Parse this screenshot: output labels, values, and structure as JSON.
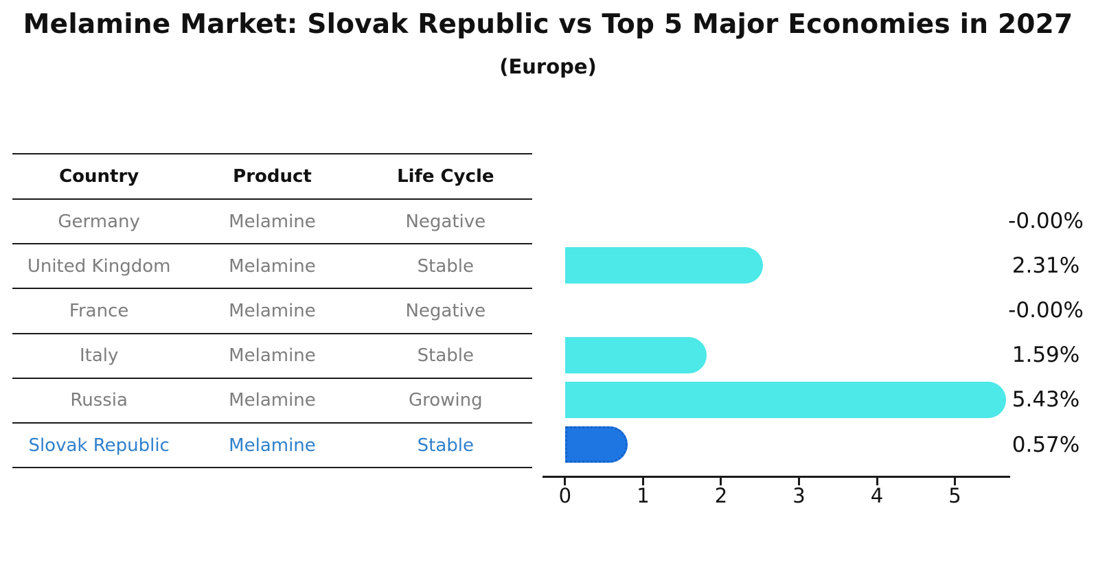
{
  "chart_data": {
    "type": "bar",
    "orientation": "horizontal",
    "title": "Melamine Market: Slovak Republic vs Top 5 Major Economies in 2027",
    "subtitle": "(Europe)",
    "categories": [
      "Germany",
      "United Kingdom",
      "France",
      "Italy",
      "Russia",
      "Slovak Republic"
    ],
    "values": [
      0,
      2.31,
      0,
      1.59,
      5.43,
      0.57
    ],
    "value_labels": [
      "-0.00%",
      "2.31%",
      "-0.00%",
      "1.59%",
      "5.43%",
      "0.57%"
    ],
    "x_ticks": [
      "0",
      "1",
      "2",
      "3",
      "4",
      "5"
    ],
    "xlim": [
      -0.29,
      5.7
    ],
    "grid": false,
    "legend": "none",
    "bar_color": "#4de8e8",
    "highlight_bar_color": "#1d76e2",
    "highlight_bar_border": "#1560c8",
    "highlight_index": 5
  },
  "table": {
    "headers": [
      "Country",
      "Product",
      "Life Cycle"
    ],
    "rows": [
      {
        "country": "Germany",
        "product": "Melamine",
        "life_cycle": "Negative",
        "highlight": false
      },
      {
        "country": "United Kingdom",
        "product": "Melamine",
        "life_cycle": "Stable",
        "highlight": false
      },
      {
        "country": "France",
        "product": "Melamine",
        "life_cycle": "Negative",
        "highlight": false
      },
      {
        "country": "Italy",
        "product": "Melamine",
        "life_cycle": "Stable",
        "highlight": false
      },
      {
        "country": "Russia",
        "product": "Melamine",
        "life_cycle": "Growing",
        "highlight": false
      },
      {
        "country": "Slovak Republic",
        "product": "Melamine",
        "life_cycle": "Stable",
        "highlight": true
      }
    ]
  },
  "colors": {
    "heading_text": "#111111",
    "body_text": "#7d7d7d",
    "highlight_text": "#2e80cc",
    "axis": "#1a1a1a",
    "background": "#ffffff"
  }
}
